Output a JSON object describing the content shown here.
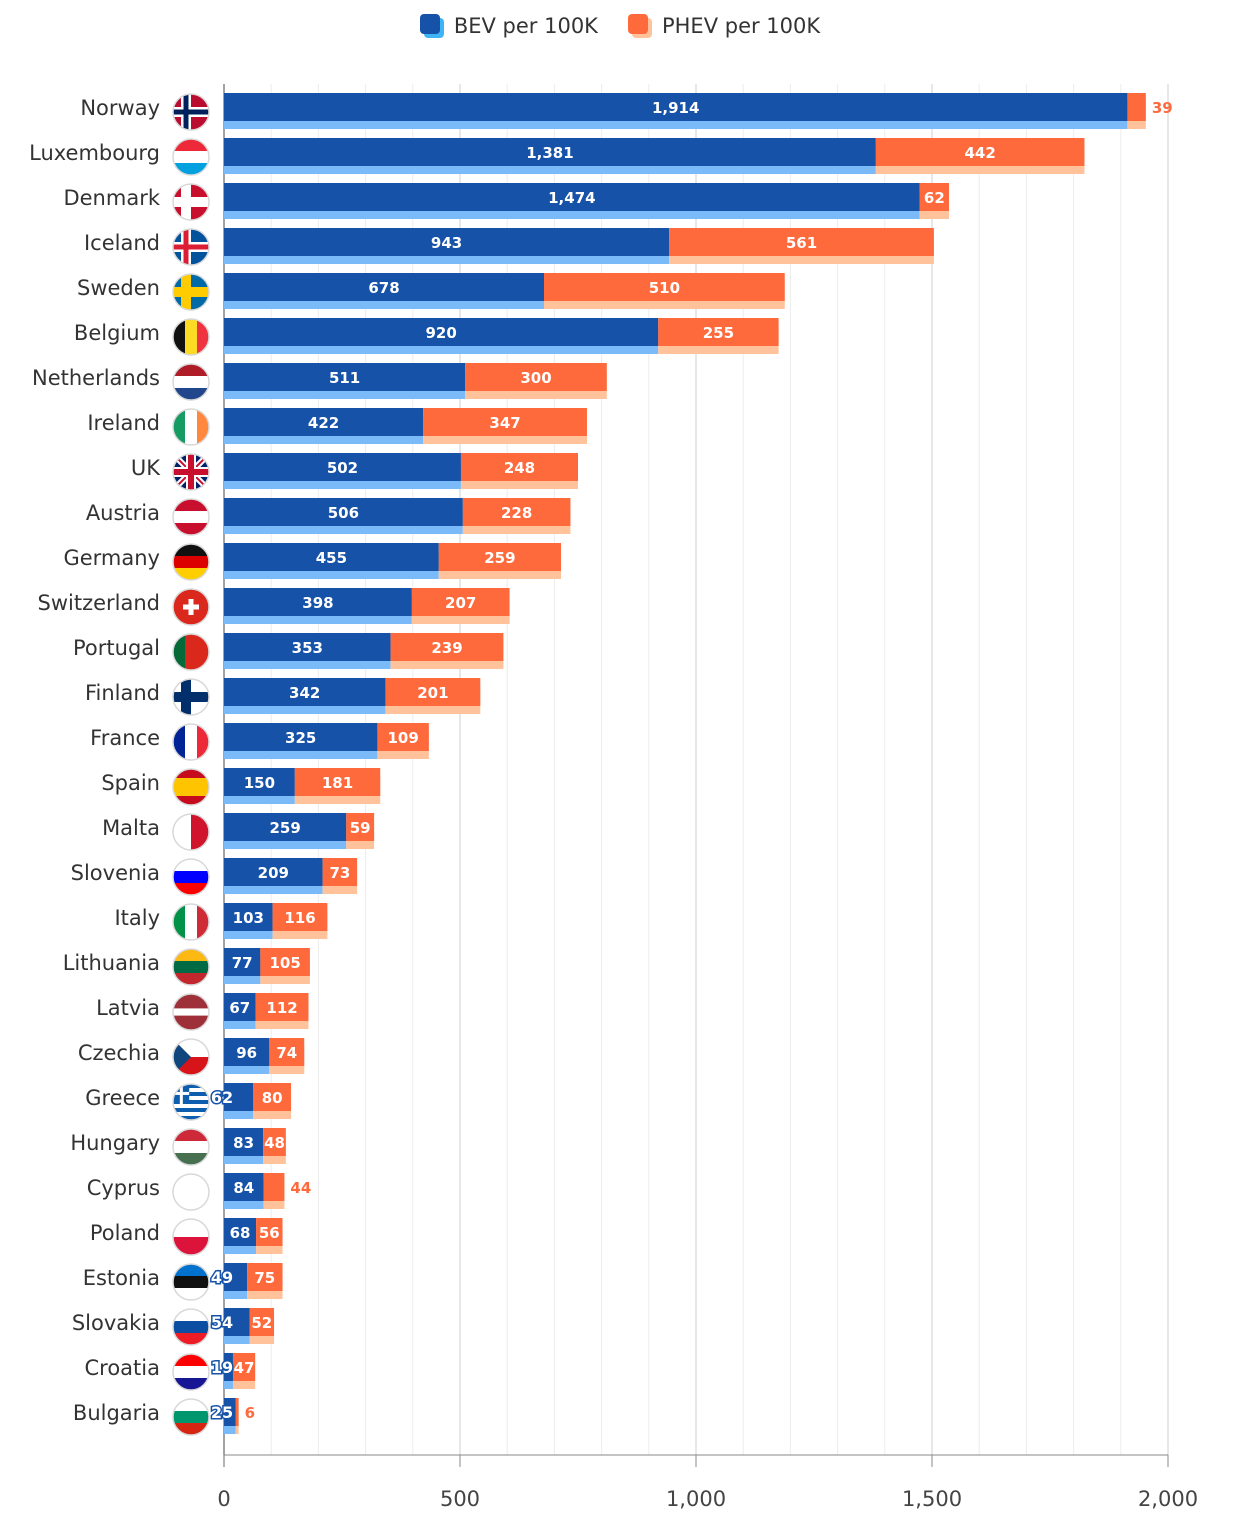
{
  "chart_data": {
    "type": "bar",
    "orientation": "horizontal",
    "stacked": true,
    "title": "",
    "xlabel": "",
    "ylabel": "",
    "xlim": [
      0,
      2000
    ],
    "x_ticks": [
      0,
      500,
      1000,
      1500,
      2000
    ],
    "x_tick_labels": [
      "0",
      "500",
      "1,000",
      "1,500",
      "2,000"
    ],
    "grid": true,
    "legend_position": "top",
    "categories": [
      "Norway",
      "Luxembourg",
      "Denmark",
      "Iceland",
      "Sweden",
      "Belgium",
      "Netherlands",
      "Ireland",
      "UK",
      "Austria",
      "Germany",
      "Switzerland",
      "Portugal",
      "Finland",
      "France",
      "Spain",
      "Malta",
      "Slovenia",
      "Italy",
      "Lithuania",
      "Latvia",
      "Czechia",
      "Greece",
      "Hungary",
      "Cyprus",
      "Poland",
      "Estonia",
      "Slovakia",
      "Croatia",
      "Bulgaria"
    ],
    "series": [
      {
        "name": "BEV per 100K",
        "color": "#1652a8",
        "shadow_color": "#7abaf8",
        "values": [
          1914,
          1381,
          1474,
          943,
          678,
          920,
          511,
          422,
          502,
          506,
          455,
          398,
          353,
          342,
          325,
          150,
          259,
          209,
          103,
          77,
          67,
          96,
          62,
          83,
          84,
          68,
          49,
          54,
          19,
          25
        ],
        "labels": [
          "1,914",
          "1,381",
          "1,474",
          "943",
          "678",
          "920",
          "511",
          "422",
          "502",
          "506",
          "455",
          "398",
          "353",
          "342",
          "325",
          "150",
          "259",
          "209",
          "103",
          "77",
          "67",
          "96",
          "62",
          "83",
          "84",
          "68",
          "49",
          "54",
          "19",
          "25"
        ]
      },
      {
        "name": "PHEV per 100K",
        "color": "#ff6a3d",
        "shadow_color": "#ffc29a",
        "values": [
          39,
          442,
          62,
          561,
          510,
          255,
          300,
          347,
          248,
          228,
          259,
          207,
          239,
          201,
          109,
          181,
          59,
          73,
          116,
          105,
          112,
          74,
          80,
          48,
          44,
          56,
          75,
          52,
          47,
          6
        ],
        "labels": [
          "39",
          "442",
          "62",
          "561",
          "510",
          "255",
          "300",
          "347",
          "248",
          "228",
          "259",
          "207",
          "239",
          "201",
          "109",
          "181",
          "59",
          "73",
          "116",
          "105",
          "112",
          "74",
          "80",
          "48",
          "44",
          "56",
          "75",
          "52",
          "47",
          "6"
        ]
      }
    ]
  },
  "legend": {
    "bev": "BEV per 100K",
    "phev": "PHEV per 100K"
  }
}
